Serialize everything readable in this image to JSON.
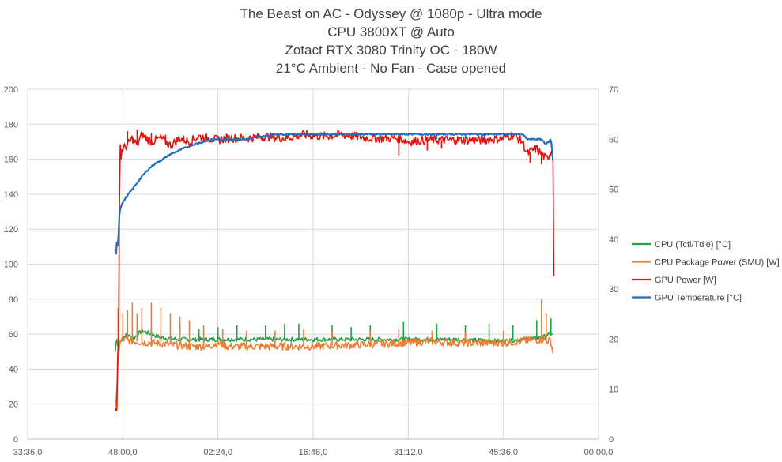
{
  "chart_data": {
    "type": "line",
    "title_lines": [
      "The Beast on AC - Odyssey @ 1080p - Ultra mode",
      "CPU 3800XT @ Auto",
      "Zotact RTX 3080 Trinity OC - 180W",
      "21°C Ambient - No Fan - Case opened"
    ],
    "x_tick_labels": [
      "33:36,0",
      "48:00,0",
      "02:24,0",
      "16:48,0",
      "31:12,0",
      "45:36,0",
      "00:00,0"
    ],
    "y_left": {
      "ylim": [
        0,
        200
      ],
      "ticks": [
        "0",
        "20",
        "40",
        "60",
        "80",
        "100",
        "120",
        "140",
        "160",
        "180",
        "200"
      ]
    },
    "y_right": {
      "ylim": [
        0,
        70
      ],
      "ticks": [
        "0",
        "10",
        "20",
        "30",
        "40",
        "50",
        "60",
        "70"
      ]
    },
    "grid": true,
    "legend_position": "right",
    "x_domain": [
      0,
      6
    ],
    "series": [
      {
        "name": "CPU (Tctl/Tdie) [°C]",
        "axis": "left",
        "color": "#22a04a",
        "points": [
          [
            0.92,
            50
          ],
          [
            0.935,
            58
          ],
          [
            0.95,
            52
          ],
          [
            0.97,
            55
          ],
          [
            1.0,
            58
          ],
          [
            1.05,
            60
          ],
          [
            1.1,
            57
          ],
          [
            1.2,
            62
          ],
          [
            1.3,
            60
          ],
          [
            1.4,
            58
          ],
          [
            1.6,
            57
          ],
          [
            1.8,
            57
          ],
          [
            2.0,
            57
          ],
          [
            2.5,
            57
          ],
          [
            3.0,
            57
          ],
          [
            3.5,
            57
          ],
          [
            4.0,
            57
          ],
          [
            4.5,
            57
          ],
          [
            5.0,
            56
          ],
          [
            5.4,
            58
          ],
          [
            5.5,
            60
          ],
          [
            5.52,
            60
          ]
        ],
        "spikes": [
          [
            1.0,
            66
          ],
          [
            1.15,
            65
          ],
          [
            1.3,
            64
          ],
          [
            1.6,
            66
          ],
          [
            1.8,
            63
          ],
          [
            2.0,
            64
          ],
          [
            2.2,
            65
          ],
          [
            2.5,
            65
          ],
          [
            2.7,
            66
          ],
          [
            2.85,
            66
          ],
          [
            3.2,
            65
          ],
          [
            3.4,
            64
          ],
          [
            3.6,
            65
          ],
          [
            3.95,
            67
          ],
          [
            4.3,
            66
          ],
          [
            4.6,
            65
          ],
          [
            4.85,
            66
          ],
          [
            5.1,
            65
          ],
          [
            5.35,
            68
          ],
          [
            5.5,
            69
          ]
        ]
      },
      {
        "name": "CPU Package Power (SMU) [W]",
        "axis": "left",
        "color": "#ed7d31",
        "points": [
          [
            0.92,
            18
          ],
          [
            0.935,
            25
          ],
          [
            0.95,
            45
          ],
          [
            0.97,
            55
          ],
          [
            1.0,
            57
          ],
          [
            1.1,
            56
          ],
          [
            1.3,
            55
          ],
          [
            1.5,
            54
          ],
          [
            1.7,
            53
          ],
          [
            1.9,
            53
          ],
          [
            2.0,
            55
          ],
          [
            2.1,
            53
          ],
          [
            2.5,
            53
          ],
          [
            3.0,
            53
          ],
          [
            3.5,
            54
          ],
          [
            4.0,
            55
          ],
          [
            4.2,
            56
          ],
          [
            4.5,
            55
          ],
          [
            5.0,
            55
          ],
          [
            5.2,
            56
          ],
          [
            5.4,
            57
          ],
          [
            5.5,
            56
          ],
          [
            5.52,
            49
          ]
        ],
        "spikes": [
          [
            0.95,
            75
          ],
          [
            1.0,
            72
          ],
          [
            1.05,
            74
          ],
          [
            1.1,
            78
          ],
          [
            1.15,
            72
          ],
          [
            1.2,
            75
          ],
          [
            1.3,
            78
          ],
          [
            1.4,
            75
          ],
          [
            1.5,
            72
          ],
          [
            1.6,
            70
          ],
          [
            1.7,
            68
          ],
          [
            1.85,
            65
          ],
          [
            2.05,
            63
          ],
          [
            2.3,
            62
          ],
          [
            2.6,
            62
          ],
          [
            2.9,
            63
          ],
          [
            3.2,
            61
          ],
          [
            3.6,
            62
          ],
          [
            3.9,
            63
          ],
          [
            4.25,
            62
          ],
          [
            4.6,
            61
          ],
          [
            5.0,
            62
          ],
          [
            5.4,
            80
          ],
          [
            5.45,
            72
          ]
        ]
      },
      {
        "name": "GPU Power [W]",
        "axis": "left",
        "color": "#e8110f",
        "points": [
          [
            0.92,
            18
          ],
          [
            0.93,
            16
          ],
          [
            0.94,
            17
          ],
          [
            0.945,
            30
          ],
          [
            0.95,
            87
          ],
          [
            0.955,
            60
          ],
          [
            0.96,
            25
          ],
          [
            0.965,
            150
          ],
          [
            0.97,
            165
          ],
          [
            0.975,
            170
          ],
          [
            0.98,
            160
          ],
          [
            0.99,
            165
          ],
          [
            1.0,
            166
          ],
          [
            1.05,
            168
          ],
          [
            1.1,
            172
          ],
          [
            1.15,
            168
          ],
          [
            1.2,
            174
          ],
          [
            1.3,
            170
          ],
          [
            1.4,
            172
          ],
          [
            1.5,
            168
          ],
          [
            1.6,
            172
          ],
          [
            1.7,
            170
          ],
          [
            1.8,
            173
          ],
          [
            1.9,
            172
          ],
          [
            2.0,
            171
          ],
          [
            2.1,
            172
          ],
          [
            2.3,
            172
          ],
          [
            2.5,
            173
          ],
          [
            2.7,
            172
          ],
          [
            2.9,
            174
          ],
          [
            3.1,
            173
          ],
          [
            3.3,
            174
          ],
          [
            3.6,
            172
          ],
          [
            3.9,
            172
          ],
          [
            4.0,
            170
          ],
          [
            4.2,
            171
          ],
          [
            4.5,
            171
          ],
          [
            4.8,
            171
          ],
          [
            5.0,
            172
          ],
          [
            5.1,
            174
          ],
          [
            5.2,
            170
          ],
          [
            5.25,
            163
          ],
          [
            5.3,
            165
          ],
          [
            5.35,
            166
          ],
          [
            5.4,
            163
          ],
          [
            5.45,
            160
          ],
          [
            5.5,
            164
          ],
          [
            5.52,
            168
          ],
          [
            5.53,
            93
          ]
        ],
        "spikes": [
          [
            1.05,
            176
          ],
          [
            1.15,
            177
          ],
          [
            1.3,
            175
          ],
          [
            1.45,
            174
          ],
          [
            3.9,
            162
          ],
          [
            4.2,
            165
          ],
          [
            4.35,
            166
          ],
          [
            4.5,
            168
          ],
          [
            4.7,
            170
          ],
          [
            5.28,
            158
          ],
          [
            5.4,
            157
          ]
        ]
      },
      {
        "name": "GPU Temperature [°C]",
        "axis": "right",
        "color": "#1f6fbf",
        "points": [
          [
            0.92,
            38
          ],
          [
            0.93,
            37
          ],
          [
            0.94,
            40
          ],
          [
            0.95,
            38
          ],
          [
            0.96,
            44
          ],
          [
            0.97,
            46
          ],
          [
            0.99,
            47
          ],
          [
            1.02,
            48
          ],
          [
            1.06,
            49
          ],
          [
            1.1,
            50
          ],
          [
            1.14,
            51
          ],
          [
            1.18,
            52
          ],
          [
            1.22,
            53
          ],
          [
            1.27,
            54
          ],
          [
            1.33,
            55
          ],
          [
            1.42,
            56
          ],
          [
            1.5,
            57
          ],
          [
            1.62,
            58
          ],
          [
            1.75,
            59
          ],
          [
            1.95,
            60
          ],
          [
            2.3,
            60
          ],
          [
            2.6,
            61
          ],
          [
            3.0,
            61
          ],
          [
            3.5,
            61
          ],
          [
            4.0,
            61
          ],
          [
            4.5,
            61
          ],
          [
            5.0,
            61
          ],
          [
            5.2,
            61
          ],
          [
            5.25,
            60
          ],
          [
            5.4,
            60
          ],
          [
            5.45,
            59
          ],
          [
            5.5,
            60
          ],
          [
            5.52,
            56
          ]
        ],
        "spikes": [
          [
            3.7,
            60
          ],
          [
            4.3,
            60
          ],
          [
            4.6,
            60
          ],
          [
            4.8,
            60
          ],
          [
            5.0,
            60
          ]
        ]
      }
    ]
  }
}
